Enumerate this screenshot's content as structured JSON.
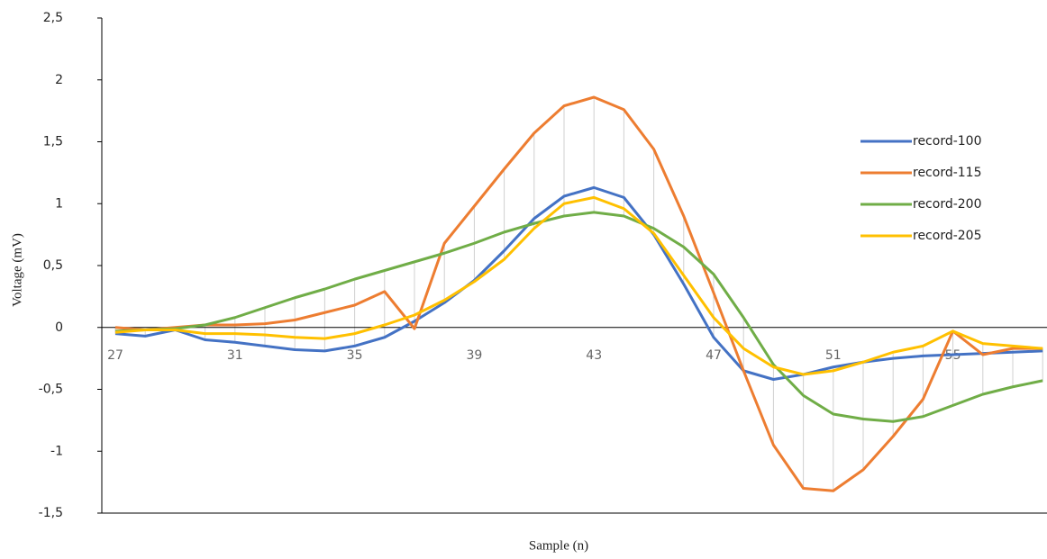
{
  "chart_data": {
    "type": "line",
    "x_label": "Sample (n)",
    "y_label": "Voltage (mV)",
    "categories": [
      27,
      null,
      null,
      null,
      31,
      null,
      null,
      null,
      35,
      null,
      null,
      null,
      39,
      null,
      null,
      null,
      43,
      null,
      null,
      null,
      47,
      null,
      null,
      null,
      51,
      null,
      null,
      null,
      55,
      null,
      null,
      null
    ],
    "ylim": [
      -1.5,
      2.5
    ],
    "yticks": [
      {
        "value": -1.5,
        "label": "-1,5"
      },
      -1,
      {
        "value": -0.5,
        "label": "-0,5"
      },
      0,
      {
        "value": 0.5,
        "label": "0,5"
      },
      1,
      {
        "value": 1.5,
        "label": "1,5"
      },
      2,
      {
        "value": 2.5,
        "label": "2,5"
      }
    ],
    "high_low_lines": true,
    "legend": "right",
    "series": [
      {
        "name": "record-100",
        "color": "#4472c4",
        "values": [
          -0.05,
          -0.07,
          -0.02,
          -0.1,
          -0.12,
          -0.15,
          -0.18,
          -0.19,
          -0.15,
          -0.08,
          0.05,
          0.2,
          0.38,
          0.62,
          0.88,
          1.06,
          1.13,
          1.05,
          0.75,
          0.35,
          -0.08,
          -0.35,
          -0.42,
          -0.38,
          -0.32,
          -0.28,
          -0.25,
          -0.23,
          -0.22,
          -0.21,
          -0.2,
          -0.19
        ]
      },
      {
        "name": "record-115",
        "color": "#ed7d31",
        "values": [
          0,
          -0.02,
          0,
          0.02,
          0.02,
          0.03,
          0.06,
          0.12,
          0.18,
          0.29,
          -0.01,
          0.68,
          0.98,
          1.28,
          1.57,
          1.79,
          1.86,
          1.76,
          1.44,
          0.9,
          0.28,
          -0.35,
          -0.95,
          -1.3,
          -1.32,
          -1.15,
          -0.88,
          -0.58,
          -0.03,
          -0.22,
          -0.17,
          -0.17
        ]
      },
      {
        "name": "record-200",
        "color": "#70ad47",
        "values": [
          -0.03,
          -0.02,
          -0.01,
          0.02,
          0.08,
          0.16,
          0.24,
          0.31,
          0.39,
          0.46,
          0.53,
          0.6,
          0.68,
          0.77,
          0.84,
          0.9,
          0.93,
          0.9,
          0.8,
          0.65,
          0.43,
          0.08,
          -0.3,
          -0.55,
          -0.7,
          -0.74,
          -0.76,
          -0.72,
          -0.63,
          -0.54,
          -0.48,
          -0.43
        ]
      },
      {
        "name": "record-205",
        "color": "#ffc000",
        "values": [
          -0.04,
          -0.02,
          -0.02,
          -0.05,
          -0.05,
          -0.06,
          -0.08,
          -0.09,
          -0.05,
          0.02,
          0.1,
          0.22,
          0.37,
          0.55,
          0.8,
          1.0,
          1.05,
          0.96,
          0.76,
          0.42,
          0.08,
          -0.17,
          -0.32,
          -0.38,
          -0.35,
          -0.28,
          -0.2,
          -0.15,
          -0.03,
          -0.13,
          -0.15,
          -0.17
        ]
      }
    ]
  }
}
